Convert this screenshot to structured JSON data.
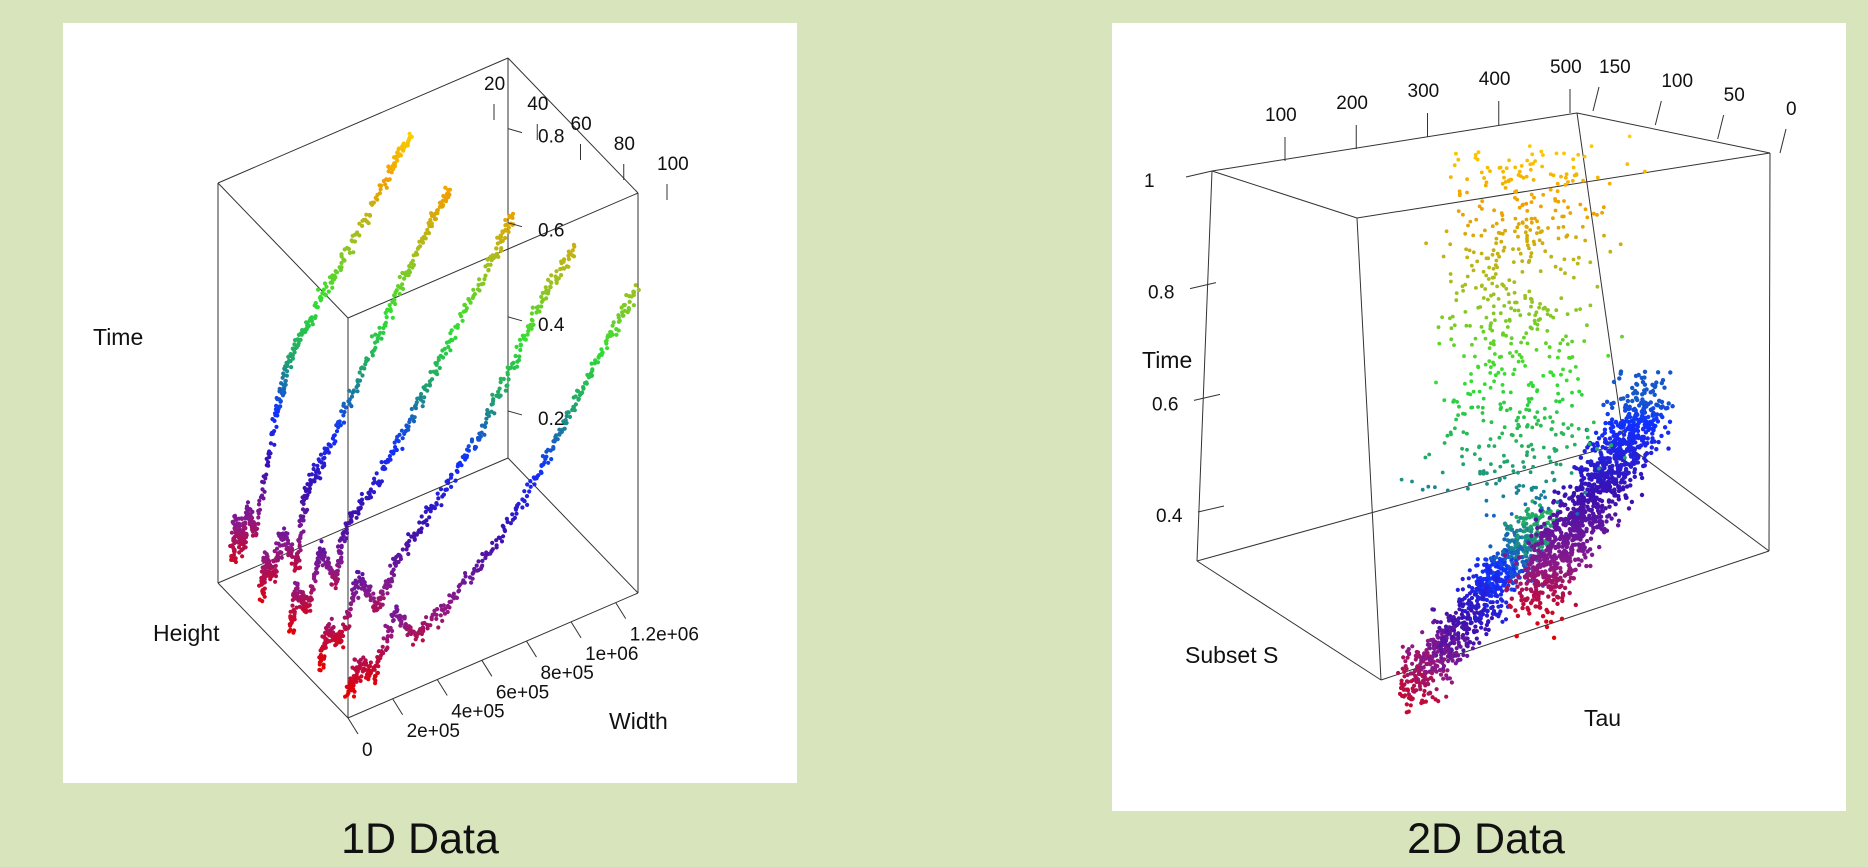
{
  "colors": {
    "background": "#d8e4bc",
    "panel": "#ffffff",
    "color_scale": [
      "#e60000",
      "#8a1a8a",
      "#3a10b0",
      "#1030ff",
      "#20a070",
      "#30e030",
      "#a0c020",
      "#f0a000",
      "#ffe000"
    ]
  },
  "chart_data": [
    {
      "type": "scatter",
      "dimensions": "3d",
      "caption": "1D Data",
      "xlabel": "Width",
      "ylabel": "Height",
      "zlabel": "Time",
      "x_ticks": [
        "0",
        "2e+05",
        "4e+05",
        "6e+05",
        "8e+05",
        "1e+06",
        "1.2e+06"
      ],
      "y_ticks": [
        "20",
        "40",
        "60",
        "80",
        "100"
      ],
      "z_ticks": [
        "0.2",
        "0.4",
        "0.6",
        "0.8"
      ],
      "xlim": [
        0,
        1300000
      ],
      "ylim": [
        10,
        100
      ],
      "zlim": [
        0.1,
        0.95
      ],
      "color_encoding": "Time (red = low, yellow = high)",
      "series": [
        {
          "height": 20,
          "points": [
            [
              0,
              0.18
            ],
            [
              20000,
              0.26
            ],
            [
              40000,
              0.2
            ],
            [
              70000,
              0.27
            ],
            [
              100000,
              0.22
            ],
            [
              200000,
              0.45
            ],
            [
              250000,
              0.55
            ],
            [
              350000,
              0.62
            ],
            [
              500000,
              0.72
            ],
            [
              700000,
              0.86
            ],
            [
              800000,
              0.92
            ]
          ]
        },
        {
          "height": 40,
          "points": [
            [
              0,
              0.17
            ],
            [
              20000,
              0.24
            ],
            [
              50000,
              0.2
            ],
            [
              100000,
              0.28
            ],
            [
              160000,
              0.2
            ],
            [
              200000,
              0.35
            ],
            [
              300000,
              0.42
            ],
            [
              450000,
              0.55
            ],
            [
              600000,
              0.68
            ],
            [
              750000,
              0.8
            ],
            [
              850000,
              0.86
            ]
          ]
        },
        {
          "height": 60,
          "points": [
            [
              0,
              0.16
            ],
            [
              30000,
              0.24
            ],
            [
              70000,
              0.19
            ],
            [
              140000,
              0.3
            ],
            [
              200000,
              0.22
            ],
            [
              250000,
              0.33
            ],
            [
              400000,
              0.4
            ],
            [
              550000,
              0.5
            ],
            [
              700000,
              0.62
            ],
            [
              900000,
              0.76
            ],
            [
              1000000,
              0.84
            ]
          ]
        },
        {
          "height": 80,
          "points": [
            [
              0,
              0.15
            ],
            [
              40000,
              0.22
            ],
            [
              100000,
              0.18
            ],
            [
              180000,
              0.3
            ],
            [
              260000,
              0.22
            ],
            [
              350000,
              0.3
            ],
            [
              500000,
              0.37
            ],
            [
              700000,
              0.48
            ],
            [
              850000,
              0.6
            ],
            [
              1000000,
              0.72
            ],
            [
              1150000,
              0.8
            ]
          ]
        },
        {
          "height": 100,
          "points": [
            [
              0,
              0.15
            ],
            [
              50000,
              0.2
            ],
            [
              120000,
              0.17
            ],
            [
              220000,
              0.28
            ],
            [
              300000,
              0.21
            ],
            [
              450000,
              0.25
            ],
            [
              650000,
              0.33
            ],
            [
              850000,
              0.44
            ],
            [
              1000000,
              0.55
            ],
            [
              1150000,
              0.66
            ],
            [
              1300000,
              0.75
            ]
          ]
        }
      ]
    },
    {
      "type": "scatter",
      "dimensions": "3d",
      "caption": "2D Data",
      "xlabel": "Tau",
      "ylabel": "Subset S",
      "zlabel": "Time",
      "x_ticks": [
        "0",
        "50",
        "100",
        "150"
      ],
      "y_ticks": [
        "100",
        "200",
        "300",
        "400",
        "500"
      ],
      "z_ticks": [
        "0.4",
        "0.6",
        "0.8",
        "1"
      ],
      "xlim": [
        0,
        160
      ],
      "ylim": [
        0,
        520
      ],
      "zlim": [
        0.3,
        1.05
      ],
      "color_encoding": "Time (red = low, yellow = high)",
      "clusters": [
        {
          "tau_range": [
            60,
            150
          ],
          "subset_range": [
            10,
            180
          ],
          "time_range": [
            0.3,
            0.55
          ]
        },
        {
          "tau_range": [
            100,
            150
          ],
          "subset_range": [
            200,
            420
          ],
          "time_range": [
            0.3,
            0.6
          ]
        },
        {
          "tau_range": [
            80,
            150
          ],
          "subset_range": [
            300,
            500
          ],
          "time_range": [
            0.55,
            1.0
          ]
        }
      ]
    }
  ]
}
